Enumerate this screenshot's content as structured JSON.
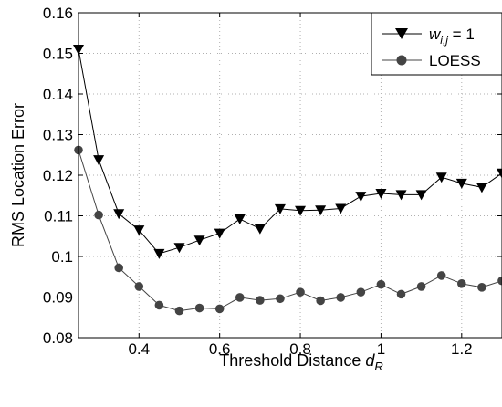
{
  "chart_data": {
    "type": "line",
    "xlabel_main": "Threshold Distance ",
    "xlabel_var": "d",
    "xlabel_sub": "R",
    "ylabel": "RMS Location Error",
    "xlim": [
      0.25,
      1.3
    ],
    "ylim": [
      0.08,
      0.16
    ],
    "xticks": [
      0.4,
      0.6,
      0.8,
      1.0,
      1.2
    ],
    "xtick_labels": [
      "0.4",
      "0.6",
      "0.8",
      "1",
      "1.2"
    ],
    "yticks": [
      0.08,
      0.09,
      0.1,
      0.11,
      0.12,
      0.13,
      0.14,
      0.15,
      0.16
    ],
    "ytick_labels": [
      "0.08",
      "0.09",
      "0.1",
      "0.11",
      "0.12",
      "0.13",
      "0.14",
      "0.15",
      "0.16"
    ],
    "grid": true,
    "legend_position": "top-right",
    "x": [
      0.25,
      0.3,
      0.35,
      0.4,
      0.45,
      0.5,
      0.55,
      0.6,
      0.65,
      0.7,
      0.75,
      0.8,
      0.85,
      0.9,
      0.95,
      1.0,
      1.05,
      1.1,
      1.15,
      1.2,
      1.25,
      1.3
    ],
    "series": [
      {
        "name_var": "w",
        "name_sub": "i,j",
        "name_rest": " = 1",
        "marker": "triangle-down",
        "color": "#000000",
        "values": [
          0.151,
          0.1238,
          0.1105,
          0.1065,
          0.1007,
          0.1022,
          0.104,
          0.1057,
          0.1092,
          0.1068,
          0.1117,
          0.1113,
          0.1114,
          0.1118,
          0.1148,
          0.1155,
          0.1152,
          0.1152,
          0.1195,
          0.118,
          0.117,
          0.1205
        ]
      },
      {
        "name": "LOESS",
        "marker": "circle",
        "color": "#444444",
        "values": [
          0.1262,
          0.1102,
          0.0972,
          0.0926,
          0.088,
          0.0866,
          0.0873,
          0.0871,
          0.0899,
          0.0892,
          0.0896,
          0.0912,
          0.0891,
          0.0899,
          0.0912,
          0.0931,
          0.0907,
          0.0926,
          0.0953,
          0.0933,
          0.0924,
          0.094
        ]
      }
    ]
  }
}
